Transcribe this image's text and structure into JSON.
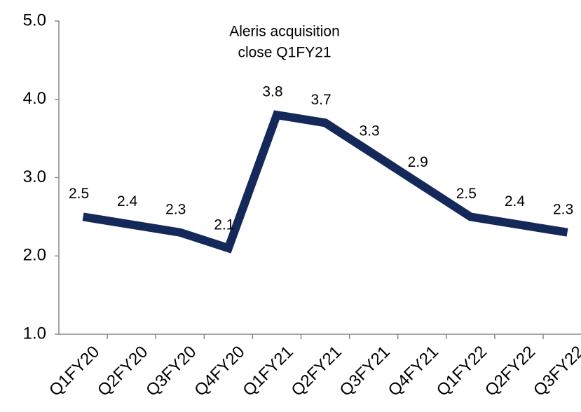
{
  "chart_data": {
    "type": "line",
    "annotation": [
      "Aleris acquisition",
      "close Q1FY21"
    ],
    "categories": [
      "Q1FY20",
      "Q2FY20",
      "Q3FY20",
      "Q4FY20",
      "Q1FY21",
      "Q2FY21",
      "Q3FY21",
      "Q4FY21",
      "Q1FY22",
      "Q2FY22",
      "Q3FY22"
    ],
    "series": [
      {
        "color": "#14285a",
        "values": [
          2.5,
          2.4,
          2.3,
          2.1,
          3.8,
          3.7,
          3.3,
          2.9,
          2.5,
          2.4,
          2.3
        ]
      }
    ],
    "ylim": [
      1,
      5
    ],
    "yticks": [
      {
        "value": 1,
        "label": "1.0"
      },
      {
        "value": 2,
        "label": "2.0"
      },
      {
        "value": 3,
        "label": "3.0"
      },
      {
        "value": 4,
        "label": "4.0"
      },
      {
        "value": 5,
        "label": "5.0"
      }
    ],
    "grid": false
  }
}
